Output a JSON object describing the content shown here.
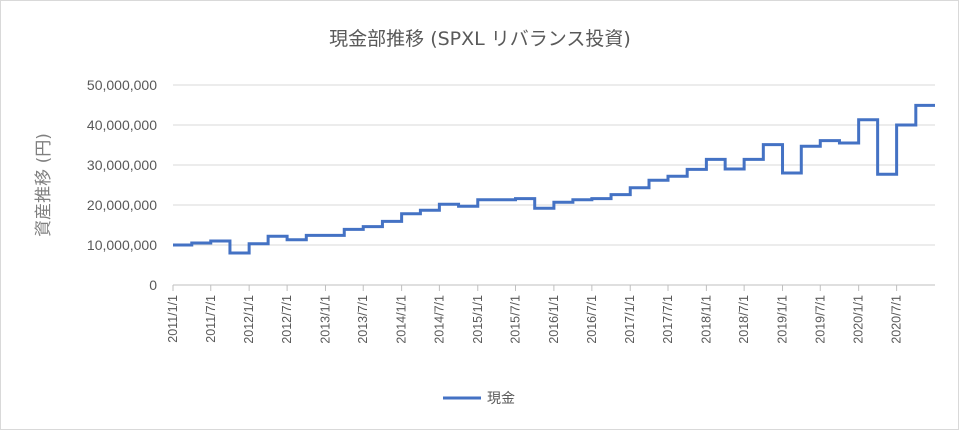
{
  "chart_data": {
    "type": "line",
    "title": "現金部推移 (SPXL リバランス投資)",
    "xlabel": "",
    "ylabel": "資産推移 (円)",
    "ylim": [
      0,
      50000000
    ],
    "yticks": [
      0,
      10000000,
      20000000,
      30000000,
      40000000,
      50000000
    ],
    "ytick_labels": [
      "0",
      "10,000,000",
      "20,000,000",
      "30,000,000",
      "40,000,000",
      "50,000,000"
    ],
    "xlim": [
      "2011/1/1",
      "2021/1/1"
    ],
    "xticks": [
      "2011/1/1",
      "2011/7/1",
      "2012/1/1",
      "2012/7/1",
      "2013/1/1",
      "2013/7/1",
      "2014/1/1",
      "2014/7/1",
      "2015/1/1",
      "2015/7/1",
      "2016/1/1",
      "2016/7/1",
      "2017/1/1",
      "2017/7/1",
      "2018/1/1",
      "2018/7/1",
      "2019/1/1",
      "2019/7/1",
      "2020/1/1",
      "2020/7/1"
    ],
    "grid": true,
    "legend_position": "bottom",
    "series": [
      {
        "name": "現金",
        "color": "#4472c4",
        "step": true,
        "x": [
          "2011/1/1",
          "2011/4/1",
          "2011/7/1",
          "2011/10/1",
          "2012/1/1",
          "2012/4/1",
          "2012/7/1",
          "2012/10/1",
          "2013/1/1",
          "2013/4/1",
          "2013/7/1",
          "2013/10/1",
          "2014/1/1",
          "2014/4/1",
          "2014/7/1",
          "2014/10/1",
          "2015/1/1",
          "2015/4/1",
          "2015/7/1",
          "2015/10/1",
          "2016/1/1",
          "2016/4/1",
          "2016/7/1",
          "2016/10/1",
          "2017/1/1",
          "2017/4/1",
          "2017/7/1",
          "2017/10/1",
          "2018/1/1",
          "2018/4/1",
          "2018/7/1",
          "2018/10/1",
          "2019/1/1",
          "2019/4/1",
          "2019/7/1",
          "2019/10/1",
          "2020/1/1",
          "2020/4/1",
          "2020/7/1",
          "2020/10/1",
          "2020/12/31"
        ],
        "values": [
          10000000,
          10500000,
          11000000,
          8000000,
          10300000,
          12200000,
          11300000,
          12400000,
          12400000,
          13900000,
          14600000,
          15900000,
          17800000,
          18700000,
          20200000,
          19700000,
          21300000,
          21300000,
          21600000,
          19200000,
          20700000,
          21300000,
          21600000,
          22600000,
          24300000,
          26200000,
          27200000,
          28900000,
          31400000,
          29000000,
          31400000,
          35100000,
          28000000,
          34700000,
          36100000,
          35500000,
          41300000,
          27700000,
          40000000,
          44900000,
          44900000
        ]
      }
    ]
  }
}
